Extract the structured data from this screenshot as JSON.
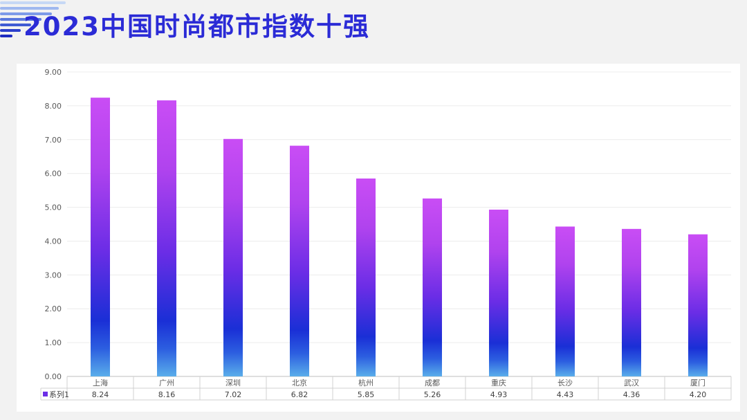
{
  "page": {
    "title": "2023中国时尚都市指数十强"
  },
  "colors": {
    "title": "#2b2bd6",
    "bar_top": "#c94df5",
    "bar_mid": "#6b2de6",
    "bar_low": "#1a2fd6",
    "bar_bottom": "#4a9ee8"
  },
  "chart_data": {
    "type": "bar",
    "categories": [
      "上海",
      "广州",
      "深圳",
      "北京",
      "杭州",
      "成都",
      "重庆",
      "长沙",
      "武汉",
      "厦门"
    ],
    "series": [
      {
        "name": "系列1",
        "values": [
          8.24,
          8.16,
          7.02,
          6.82,
          5.85,
          5.26,
          4.93,
          4.43,
          4.36,
          4.2
        ]
      }
    ],
    "value_labels": [
      "8.24",
      "8.16",
      "7.02",
      "6.82",
      "5.85",
      "5.26",
      "4.93",
      "4.43",
      "4.36",
      "4.20"
    ],
    "yticks": [
      "0.00",
      "1.00",
      "2.00",
      "3.00",
      "4.00",
      "5.00",
      "6.00",
      "7.00",
      "8.00",
      "9.00"
    ],
    "ylim": [
      0,
      9
    ],
    "grid": true,
    "data_table": true,
    "legend_in_table": true
  }
}
